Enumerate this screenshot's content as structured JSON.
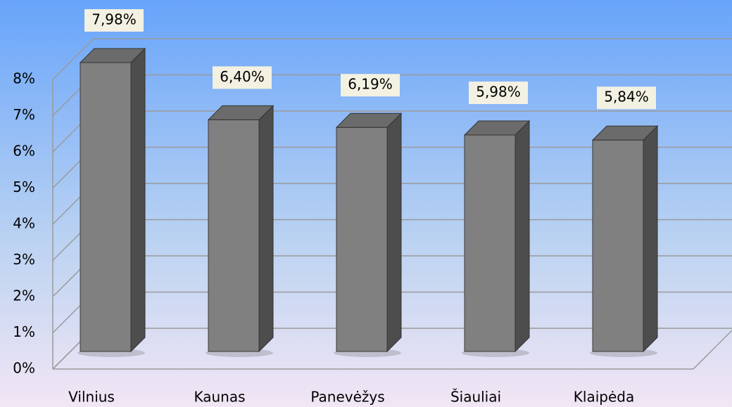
{
  "chart_data": {
    "type": "bar",
    "categories": [
      "Vilnius",
      "Kaunas",
      "Panevėžys",
      "Šiauliai",
      "Klaipėda"
    ],
    "values": [
      7.98,
      6.4,
      6.19,
      5.98,
      5.84
    ],
    "value_labels": [
      "7,98%",
      "6,40%",
      "6,19%",
      "5,98%",
      "5,84%"
    ],
    "color": "#808080",
    "ylim": [
      0,
      8
    ],
    "yticks": [
      {
        "value": 0,
        "label": "0%"
      },
      {
        "value": 1,
        "label": "1%"
      },
      {
        "value": 2,
        "label": "2%"
      },
      {
        "value": 3,
        "label": "3%"
      },
      {
        "value": 4,
        "label": "4%"
      },
      {
        "value": 5,
        "label": "5%"
      },
      {
        "value": 6,
        "label": "6%"
      },
      {
        "value": 7,
        "label": "7%"
      },
      {
        "value": 8,
        "label": "8%"
      }
    ],
    "grid": true
  }
}
